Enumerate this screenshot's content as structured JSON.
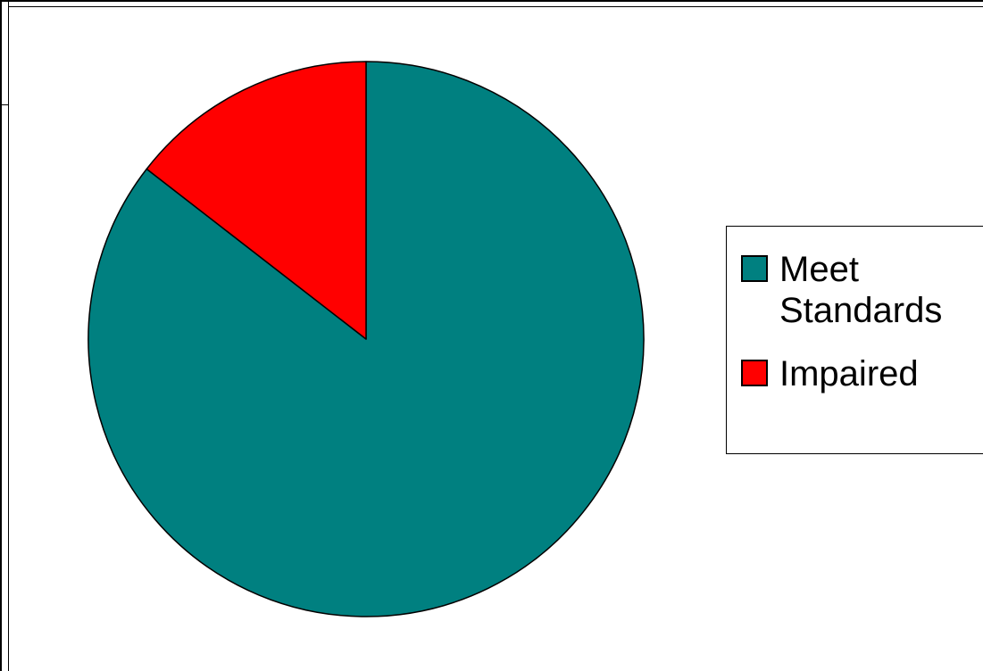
{
  "chart_data": {
    "type": "pie",
    "slices": [
      {
        "name": "Meet Standards",
        "value": 85.5,
        "color": "#008080",
        "label_lines": [
          "Meet",
          "Standards"
        ]
      },
      {
        "name": "Impaired",
        "value": 14.5,
        "color": "#ff0000",
        "label_lines": [
          "Impaired"
        ]
      }
    ],
    "legend": "right",
    "title": "",
    "start_angle_deg": 0,
    "direction": "clockwise"
  }
}
